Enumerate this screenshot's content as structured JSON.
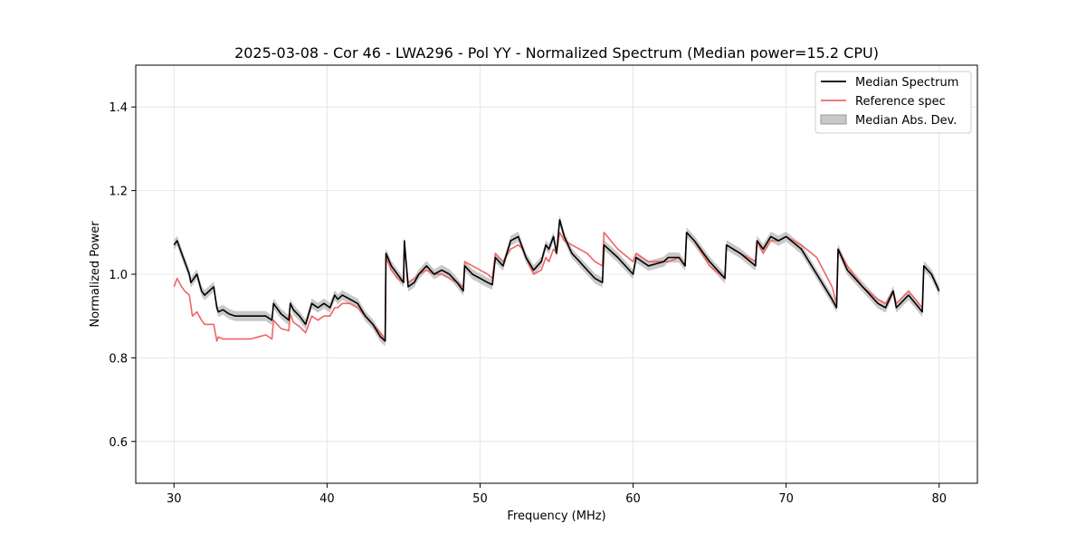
{
  "chart_data": {
    "type": "line",
    "title": "2025-03-08 - Cor 46 - LWA296 - Pol YY - Normalized Spectrum (Median power=15.2 CPU)",
    "xlabel": "Frequency (MHz)",
    "ylabel": "Normalized Power",
    "xlim": [
      27.5,
      82.5
    ],
    "ylim": [
      0.5,
      1.5
    ],
    "xticks": [
      30,
      40,
      50,
      60,
      70,
      80
    ],
    "yticks": [
      0.6,
      0.8,
      1.0,
      1.2,
      1.4
    ],
    "xtick_labels": [
      "30",
      "40",
      "50",
      "60",
      "70",
      "80"
    ],
    "ytick_labels": [
      "0.6",
      "0.8",
      "1.0",
      "1.2",
      "1.4"
    ],
    "grid": true,
    "legend_position": "top-right",
    "legend": [
      "Median Spectrum",
      "Reference spec",
      "Median Abs. Dev."
    ],
    "colors": {
      "median": "#000000",
      "reference": "#f06464",
      "mad_fill": "#bfbfbf",
      "grid": "#e0e0e0"
    },
    "series": [
      {
        "name": "Median Spectrum",
        "x": [
          30.0,
          30.2,
          30.5,
          30.7,
          31.0,
          31.1,
          31.5,
          31.8,
          32.0,
          32.3,
          32.6,
          32.8,
          32.9,
          33.2,
          33.6,
          34.0,
          34.5,
          35.0,
          35.5,
          36.0,
          36.4,
          36.5,
          37.0,
          37.5,
          37.6,
          37.8,
          38.2,
          38.6,
          39.0,
          39.4,
          39.8,
          40.2,
          40.5,
          40.7,
          41.0,
          41.5,
          42.0,
          42.5,
          43.0,
          43.5,
          43.8,
          43.85,
          44.2,
          44.6,
          45.0,
          45.05,
          45.3,
          45.7,
          46.0,
          46.5,
          47.0,
          47.5,
          48.0,
          48.5,
          48.9,
          49.0,
          49.5,
          50.0,
          50.5,
          50.8,
          51.0,
          51.5,
          52.0,
          52.5,
          52.8,
          53.0,
          53.5,
          54.0,
          54.3,
          54.5,
          54.8,
          55.0,
          55.2,
          55.5,
          56.0,
          56.5,
          57.0,
          57.5,
          58.0,
          58.1,
          59.0,
          60.0,
          60.2,
          61.0,
          62.0,
          62.3,
          63.0,
          63.4,
          63.5,
          64.0,
          65.0,
          66.0,
          66.1,
          67.0,
          68.0,
          68.1,
          68.5,
          69.0,
          69.5,
          70.0,
          71.0,
          72.0,
          73.0,
          73.3,
          73.4,
          74.0,
          75.0,
          76.0,
          76.5,
          77.0,
          77.2,
          78.0,
          78.9,
          79.0,
          79.5,
          80.0
        ],
        "values": [
          1.07,
          1.08,
          1.05,
          1.03,
          1.0,
          0.98,
          1.0,
          0.96,
          0.95,
          0.96,
          0.97,
          0.92,
          0.91,
          0.915,
          0.905,
          0.9,
          0.9,
          0.9,
          0.9,
          0.9,
          0.89,
          0.93,
          0.905,
          0.89,
          0.93,
          0.915,
          0.9,
          0.88,
          0.93,
          0.92,
          0.93,
          0.92,
          0.95,
          0.94,
          0.95,
          0.94,
          0.93,
          0.9,
          0.88,
          0.85,
          0.84,
          1.05,
          1.02,
          1.0,
          0.98,
          1.08,
          0.97,
          0.98,
          1.0,
          1.02,
          1.0,
          1.01,
          1.0,
          0.98,
          0.96,
          1.02,
          1.0,
          0.99,
          0.98,
          0.975,
          1.04,
          1.02,
          1.08,
          1.09,
          1.06,
          1.04,
          1.01,
          1.03,
          1.07,
          1.06,
          1.09,
          1.05,
          1.13,
          1.09,
          1.05,
          1.03,
          1.01,
          0.99,
          0.98,
          1.07,
          1.04,
          1.0,
          1.04,
          1.02,
          1.03,
          1.04,
          1.04,
          1.02,
          1.1,
          1.08,
          1.03,
          0.99,
          1.07,
          1.05,
          1.02,
          1.08,
          1.06,
          1.09,
          1.08,
          1.09,
          1.06,
          1.0,
          0.94,
          0.92,
          1.06,
          1.01,
          0.97,
          0.93,
          0.92,
          0.96,
          0.92,
          0.95,
          0.91,
          1.02,
          1.0,
          0.96
        ]
      },
      {
        "name": "Reference spec",
        "x": [
          30.0,
          30.2,
          30.5,
          30.7,
          31.0,
          31.2,
          31.5,
          31.8,
          32.0,
          32.3,
          32.6,
          32.8,
          32.9,
          33.2,
          33.6,
          34.0,
          34.5,
          35.0,
          35.5,
          36.0,
          36.4,
          36.5,
          37.0,
          37.5,
          37.6,
          37.8,
          38.2,
          38.6,
          39.0,
          39.4,
          39.8,
          40.2,
          40.5,
          40.7,
          41.0,
          41.5,
          42.0,
          42.5,
          43.0,
          43.5,
          43.8,
          43.85,
          44.2,
          44.6,
          45.0,
          45.05,
          45.3,
          45.7,
          46.0,
          46.5,
          47.0,
          47.5,
          48.0,
          48.5,
          48.9,
          49.0,
          49.5,
          50.0,
          50.5,
          50.8,
          51.0,
          51.5,
          52.0,
          52.5,
          52.8,
          53.0,
          53.5,
          54.0,
          54.3,
          54.5,
          54.8,
          55.0,
          55.2,
          55.5,
          56.0,
          56.5,
          57.0,
          57.5,
          58.0,
          58.1,
          59.0,
          60.0,
          60.2,
          61.0,
          62.0,
          62.3,
          63.0,
          63.4,
          63.5,
          64.0,
          65.0,
          66.0,
          66.1,
          67.0,
          68.0,
          68.1,
          68.5,
          69.0,
          69.5,
          70.0,
          71.0,
          72.0,
          73.0,
          73.3,
          73.4,
          74.0,
          75.0,
          76.0,
          76.5,
          77.0,
          77.2,
          78.0,
          78.9,
          79.0,
          79.5,
          80.0
        ],
        "values": [
          0.97,
          0.99,
          0.97,
          0.96,
          0.95,
          0.9,
          0.91,
          0.89,
          0.88,
          0.88,
          0.88,
          0.84,
          0.85,
          0.845,
          0.845,
          0.845,
          0.845,
          0.845,
          0.85,
          0.855,
          0.845,
          0.89,
          0.87,
          0.865,
          0.905,
          0.885,
          0.875,
          0.86,
          0.9,
          0.89,
          0.9,
          0.9,
          0.92,
          0.92,
          0.93,
          0.93,
          0.92,
          0.9,
          0.88,
          0.86,
          0.84,
          1.04,
          1.01,
          0.99,
          0.98,
          1.07,
          0.98,
          0.99,
          1.0,
          1.01,
          1.0,
          1.0,
          0.99,
          0.98,
          0.97,
          1.03,
          1.02,
          1.01,
          1.0,
          0.99,
          1.05,
          1.03,
          1.06,
          1.07,
          1.06,
          1.04,
          1.0,
          1.01,
          1.04,
          1.03,
          1.06,
          1.05,
          1.1,
          1.08,
          1.07,
          1.06,
          1.05,
          1.03,
          1.02,
          1.1,
          1.06,
          1.03,
          1.05,
          1.03,
          1.03,
          1.03,
          1.04,
          1.02,
          1.1,
          1.08,
          1.02,
          0.99,
          1.07,
          1.05,
          1.03,
          1.08,
          1.05,
          1.08,
          1.08,
          1.09,
          1.07,
          1.04,
          0.97,
          0.93,
          1.06,
          1.02,
          0.97,
          0.94,
          0.93,
          0.96,
          0.93,
          0.96,
          0.92,
          1.02,
          1.0,
          0.96
        ]
      }
    ],
    "mad_halfwidth": 0.012
  }
}
